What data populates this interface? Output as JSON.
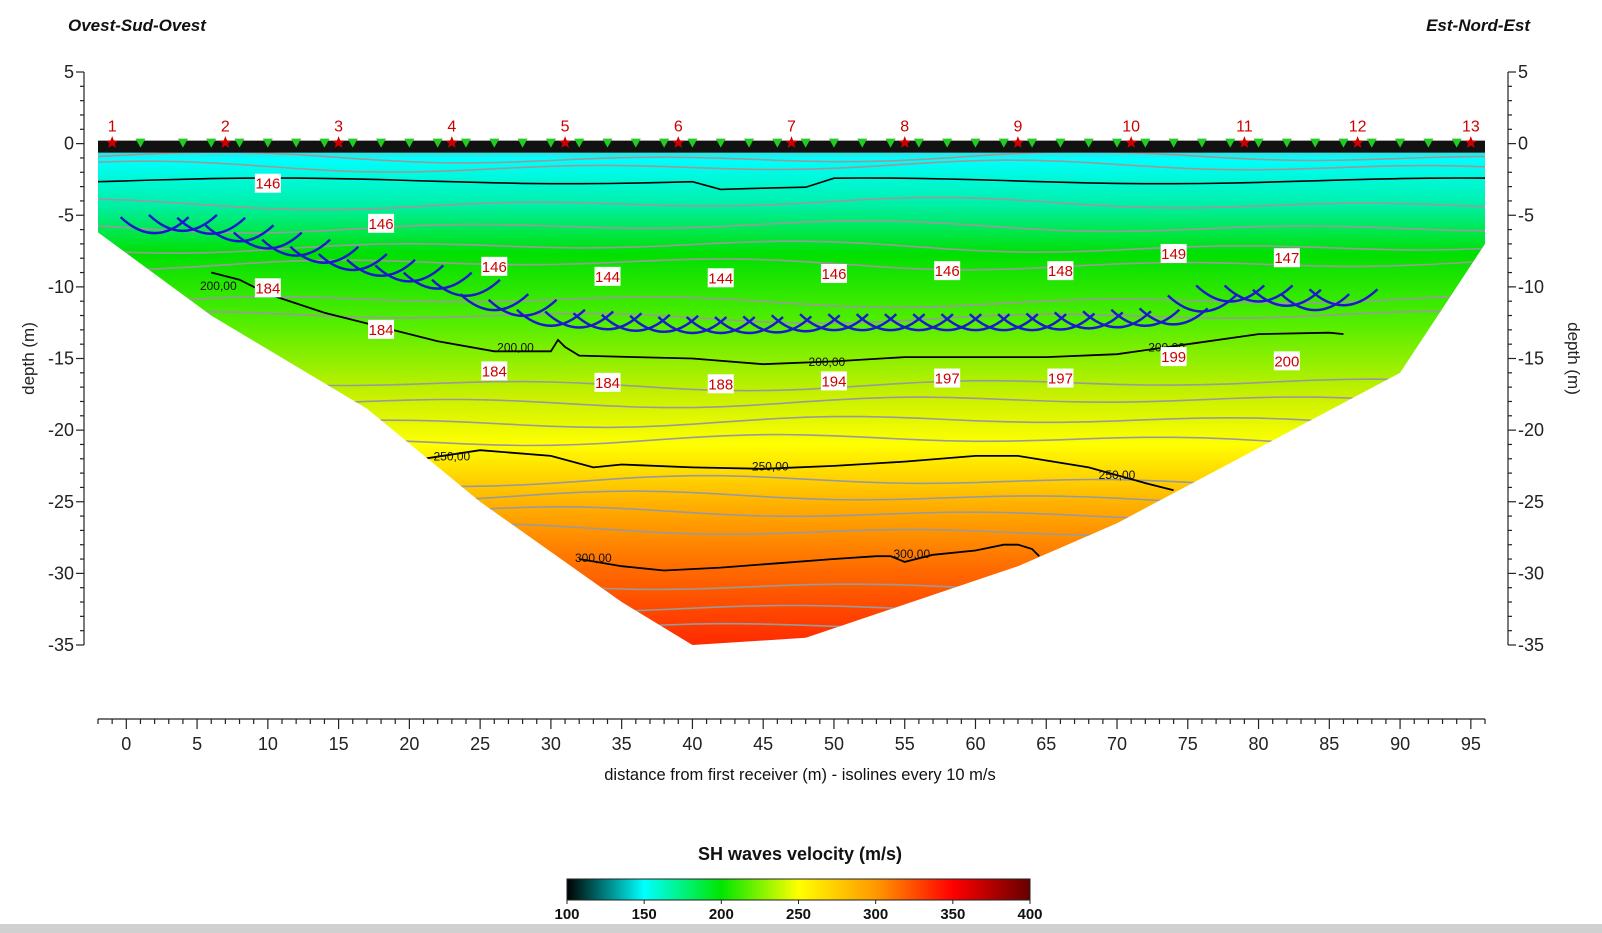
{
  "orientation": {
    "left": "Ovest-Sud-Ovest",
    "right": "Est-Nord-Est"
  },
  "colors": {
    "velocity_scale": [
      "#000000",
      "#00ffff",
      "#00e600",
      "#ffff00",
      "#ff9900",
      "#ff0000",
      "#660000"
    ],
    "isoline_major": "#000000",
    "isoline_minor": "#9a9a9a",
    "receiver": "#22cc22",
    "shot": "#cc0000",
    "refractor": "#1a1acc",
    "label": "#cc0000"
  },
  "chart_data": {
    "type": "heatmap",
    "title": "",
    "xlabel": "distance from first receiver (m) - isolines every 10 m/s",
    "ylabel_left": "depth (m)",
    "ylabel_right": "depth (m)",
    "xlim": [
      -2,
      96
    ],
    "ylim": [
      -35,
      5
    ],
    "x_ticks": [
      "0",
      "5",
      "10",
      "15",
      "20",
      "25",
      "30",
      "35",
      "40",
      "45",
      "50",
      "55",
      "60",
      "65",
      "70",
      "75",
      "80",
      "85",
      "90",
      "95"
    ],
    "y_ticks": [
      "5",
      "0",
      "-5",
      "-10",
      "-15",
      "-20",
      "-25",
      "-30",
      "-35"
    ],
    "colorbar": {
      "title": "SH waves velocity (m/s)",
      "min": 100,
      "max": 400,
      "ticks": [
        "100",
        "150",
        "200",
        "250",
        "300",
        "350",
        "400"
      ]
    },
    "model_boundary": [
      [
        -2,
        0
      ],
      [
        96,
        0
      ],
      [
        96,
        -7
      ],
      [
        90,
        -16
      ],
      [
        70,
        -26.5
      ],
      [
        63,
        -29.5
      ],
      [
        57,
        -31.5
      ],
      [
        48,
        -34.5
      ],
      [
        40,
        -35
      ],
      [
        35,
        -32
      ],
      [
        25,
        -25
      ],
      [
        17,
        -18.5
      ],
      [
        6,
        -12
      ],
      [
        -2,
        -6.2
      ]
    ],
    "shots": {
      "labels": [
        "1",
        "2",
        "3",
        "4",
        "5",
        "6",
        "7",
        "8",
        "9",
        "10",
        "11",
        "12",
        "13"
      ],
      "x": [
        -1,
        7,
        15,
        23,
        31,
        39,
        47,
        55,
        63,
        71,
        79,
        87,
        95
      ]
    },
    "receivers_x": [
      1,
      4,
      6,
      8,
      10,
      12,
      14,
      16,
      18,
      20,
      22,
      24,
      26,
      28,
      30,
      32,
      34,
      36,
      38,
      40,
      42,
      44,
      46,
      48,
      50,
      52,
      54,
      56,
      58,
      60,
      62,
      64,
      66,
      68,
      70,
      72,
      74,
      76,
      78,
      80,
      82,
      84,
      86,
      88,
      90,
      92,
      94
    ],
    "isolines_major": [
      {
        "label": "200,00",
        "points": [
          [
            6,
            -9
          ],
          [
            8,
            -9.5
          ],
          [
            10,
            -10.5
          ],
          [
            14,
            -11.8
          ],
          [
            18,
            -12.8
          ],
          [
            22,
            -13.8
          ],
          [
            26,
            -14.5
          ],
          [
            30,
            -14.5
          ],
          [
            30.5,
            -13.7
          ],
          [
            31,
            -14.2
          ],
          [
            32,
            -14.8
          ],
          [
            36,
            -14.9
          ],
          [
            40,
            -15.0
          ],
          [
            45,
            -15.4
          ],
          [
            50,
            -15.2
          ],
          [
            55,
            -14.9
          ],
          [
            60,
            -14.9
          ],
          [
            65,
            -14.9
          ],
          [
            70,
            -14.7
          ],
          [
            75,
            -14.0
          ],
          [
            80,
            -13.3
          ],
          [
            85,
            -13.2
          ],
          [
            86,
            -13.3
          ]
        ],
        "label_at": [
          [
            6.5,
            -10
          ],
          [
            27.5,
            -14.3
          ],
          [
            49.5,
            -15.3
          ],
          [
            73.5,
            -14.3
          ]
        ]
      },
      {
        "label": "250,00",
        "points": [
          [
            21,
            -22
          ],
          [
            25,
            -21.4
          ],
          [
            30,
            -21.8
          ],
          [
            33,
            -22.6
          ],
          [
            35,
            -22.4
          ],
          [
            40,
            -22.6
          ],
          [
            45,
            -22.7
          ],
          [
            50,
            -22.5
          ],
          [
            55,
            -22.2
          ],
          [
            60,
            -21.8
          ],
          [
            63,
            -21.8
          ],
          [
            68,
            -22.6
          ],
          [
            72,
            -23.7
          ],
          [
            74,
            -24.2
          ]
        ],
        "label_at": [
          [
            23,
            -21.9
          ],
          [
            45.5,
            -22.6
          ],
          [
            70,
            -23.2
          ]
        ]
      },
      {
        "label": "300,00",
        "points": [
          [
            32,
            -29
          ],
          [
            35,
            -29.5
          ],
          [
            38,
            -29.8
          ],
          [
            42,
            -29.6
          ],
          [
            46,
            -29.3
          ],
          [
            50,
            -29.0
          ],
          [
            53,
            -28.8
          ],
          [
            54,
            -28.8
          ],
          [
            55,
            -29.2
          ],
          [
            57,
            -28.7
          ],
          [
            60,
            -28.4
          ],
          [
            62,
            -28.0
          ],
          [
            63,
            -28.0
          ],
          [
            64,
            -28.3
          ],
          [
            64.5,
            -28.8
          ]
        ],
        "label_at": [
          [
            33,
            -29.0
          ],
          [
            55.5,
            -28.7
          ]
        ]
      }
    ],
    "velocity_labels": [
      {
        "text": "146",
        "x": 10,
        "y": -2.8
      },
      {
        "text": "146",
        "x": 18,
        "y": -5.6
      },
      {
        "text": "146",
        "x": 26,
        "y": -8.6
      },
      {
        "text": "144",
        "x": 34,
        "y": -9.3
      },
      {
        "text": "144",
        "x": 42,
        "y": -9.4
      },
      {
        "text": "146",
        "x": 50,
        "y": -9.1
      },
      {
        "text": "146",
        "x": 58,
        "y": -8.9
      },
      {
        "text": "148",
        "x": 66,
        "y": -8.9
      },
      {
        "text": "149",
        "x": 74,
        "y": -7.7
      },
      {
        "text": "147",
        "x": 82,
        "y": -8.0
      },
      {
        "text": "184",
        "x": 10,
        "y": -10.1
      },
      {
        "text": "184",
        "x": 18,
        "y": -13.0
      },
      {
        "text": "184",
        "x": 26,
        "y": -15.9
      },
      {
        "text": "184",
        "x": 34,
        "y": -16.7
      },
      {
        "text": "188",
        "x": 42,
        "y": -16.8
      },
      {
        "text": "194",
        "x": 50,
        "y": -16.6
      },
      {
        "text": "197",
        "x": 58,
        "y": -16.4
      },
      {
        "text": "197",
        "x": 66,
        "y": -16.4
      },
      {
        "text": "199",
        "x": 74,
        "y": -14.9
      },
      {
        "text": "200",
        "x": 82,
        "y": -15.2
      }
    ],
    "refractor_upper": [
      [
        1,
        -5.9
      ],
      [
        5,
        -5.6
      ],
      [
        8,
        -6.4
      ],
      [
        12,
        -7.4
      ],
      [
        16,
        -8.4
      ],
      [
        20,
        -9.2
      ],
      [
        24,
        -10.2
      ],
      [
        26,
        -11.2
      ],
      [
        28,
        -11.6
      ],
      [
        30,
        -12.3
      ],
      [
        35,
        -12.6
      ],
      [
        40,
        -12.8
      ],
      [
        45,
        -12.8
      ],
      [
        50,
        -12.6
      ],
      [
        55,
        -12.6
      ],
      [
        60,
        -12.6
      ],
      [
        65,
        -12.6
      ],
      [
        70,
        -12.4
      ],
      [
        74,
        -12.2
      ],
      [
        76,
        -11.3
      ],
      [
        78,
        -10.6
      ],
      [
        80,
        -10.6
      ],
      [
        82,
        -10.9
      ],
      [
        84,
        -11.2
      ],
      [
        87,
        -10.7
      ]
    ],
    "grid": false,
    "legend": "colorbar bottom-center"
  }
}
